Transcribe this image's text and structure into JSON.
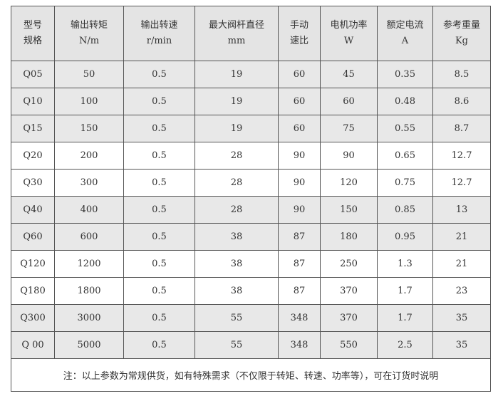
{
  "headers": [
    {
      "line1": "型号",
      "line2": "规格"
    },
    {
      "line1": "输出转矩",
      "line2": "N/m"
    },
    {
      "line1": "输出转速",
      "line2": "r/min"
    },
    {
      "line1": "最大阀杆直径",
      "line2": "mm"
    },
    {
      "line1": "手动",
      "line2": "速比"
    },
    {
      "line1": "电机功率",
      "line2": "W"
    },
    {
      "line1": "额定电流",
      "line2": "A"
    },
    {
      "line1": "参考重量",
      "line2": "Kg"
    }
  ],
  "rows": [
    [
      "Q05",
      "50",
      "0.5",
      "19",
      "60",
      "45",
      "0.35",
      "8.5"
    ],
    [
      "Q10",
      "100",
      "0.5",
      "19",
      "60",
      "60",
      "0.48",
      "8.6"
    ],
    [
      "Q15",
      "150",
      "0.5",
      "19",
      "60",
      "75",
      "0.55",
      "8.7"
    ],
    [
      "Q20",
      "200",
      "0.5",
      "28",
      "90",
      "90",
      "0.65",
      "12.7"
    ],
    [
      "Q30",
      "300",
      "0.5",
      "28",
      "90",
      "120",
      "0.75",
      "12.7"
    ],
    [
      "Q40",
      "400",
      "0.5",
      "28",
      "90",
      "150",
      "0.85",
      "13"
    ],
    [
      "Q60",
      "600",
      "0.5",
      "38",
      "87",
      "180",
      "0.95",
      "21"
    ],
    [
      "Q120",
      "1200",
      "0.5",
      "38",
      "87",
      "250",
      "1.3",
      "21"
    ],
    [
      "Q180",
      "1800",
      "0.5",
      "38",
      "87",
      "370",
      "1.7",
      "23"
    ],
    [
      "Q300",
      "3000",
      "0.5",
      "55",
      "348",
      "370",
      "1.7",
      "35"
    ],
    [
      "Q 00",
      "5000",
      "0.5",
      "55",
      "348",
      "550",
      "2.5",
      "35"
    ]
  ],
  "row_shading": [
    "grey",
    "grey",
    "grey",
    "white",
    "white",
    "grey",
    "grey",
    "white",
    "white",
    "grey",
    "grey"
  ],
  "note": "注：以上参数为常规供货，如有特殊需求（不仅限于转矩、转速、功率等），可在订货时说明",
  "colors": {
    "header_bg": "#e4e4e4",
    "shaded_row_bg": "#e8e8e8",
    "border": "#555555"
  }
}
